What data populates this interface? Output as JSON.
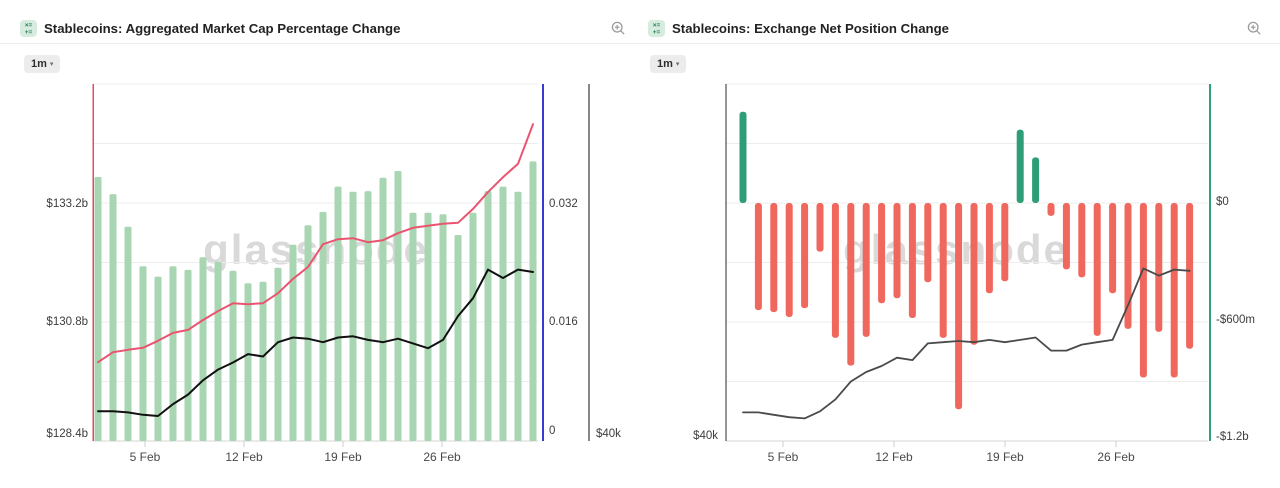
{
  "watermark": "glassnode",
  "panels": [
    {
      "title": "Stablecoins: Aggregated Market Cap Percentage Change",
      "timeframe": "1m",
      "caret": "▾",
      "icon_rows": [
        "×=",
        "+="
      ]
    },
    {
      "title": "Stablecoins: Exchange Net Position Change",
      "timeframe": "1m",
      "caret": "▾",
      "icon_rows": [
        "×=",
        "+="
      ]
    }
  ],
  "chart_data": [
    {
      "type": "bar+line",
      "title": "Stablecoins: Aggregated Market Cap Percentage Change",
      "n_points": 30,
      "grid": true,
      "legend_position": "none",
      "x_tick_labels": [
        "5 Feb",
        "12 Feb",
        "19 Feb",
        "26 Feb"
      ],
      "x_tick_indices": [
        3,
        10,
        17,
        24
      ],
      "axes": {
        "left": {
          "id": "usd_b",
          "labels": [
            "$133.2b",
            "$130.8b",
            "$128.4b"
          ],
          "range": [
            128.4,
            135.6
          ],
          "unit": "billions USD",
          "color": "#e84a61"
        },
        "right_inner": {
          "id": "pct",
          "labels": [
            "0.032",
            "0.016",
            "0"
          ],
          "range": [
            0,
            0.048
          ],
          "unit": "ratio",
          "color": "#3a3ad0"
        },
        "right_outer": {
          "id": "price",
          "labels": [
            "$40k"
          ],
          "range": [
            40,
            70
          ],
          "unit": "thousands USD",
          "color": "#111111"
        }
      },
      "series": [
        {
          "name": "market-cap-pct-change",
          "type": "bar",
          "axis": "pct",
          "color": "#a9d6b2",
          "values": [
            0.0355,
            0.0332,
            0.0288,
            0.0235,
            0.0221,
            0.0235,
            0.023,
            0.0247,
            0.0241,
            0.0229,
            0.0212,
            0.0214,
            0.0233,
            0.0264,
            0.029,
            0.0308,
            0.0342,
            0.0335,
            0.0336,
            0.0354,
            0.0363,
            0.0307,
            0.0307,
            0.0305,
            0.0277,
            0.0307,
            0.0336,
            0.0342,
            0.0335,
            0.0376
          ]
        },
        {
          "name": "aggregated-market-cap",
          "type": "line",
          "axis": "usd_b",
          "color": "#ea5470",
          "width": 2,
          "values": [
            129.99,
            130.19,
            130.24,
            130.28,
            130.42,
            130.58,
            130.64,
            130.84,
            131.02,
            131.18,
            131.16,
            131.18,
            131.38,
            131.67,
            131.91,
            132.37,
            132.47,
            132.49,
            132.41,
            132.45,
            132.59,
            132.7,
            132.74,
            132.78,
            132.8,
            133.08,
            133.42,
            133.72,
            133.99,
            134.79
          ]
        },
        {
          "name": "price",
          "type": "line",
          "axis": "price",
          "color": "#111111",
          "width": 2,
          "values": [
            42.5,
            42.5,
            42.4,
            42.2,
            42.1,
            43.1,
            43.9,
            45.1,
            46.0,
            46.6,
            47.3,
            47.1,
            48.3,
            48.7,
            48.6,
            48.3,
            48.7,
            48.8,
            48.5,
            48.3,
            48.6,
            48.2,
            47.8,
            48.5,
            50.5,
            52.0,
            54.4,
            53.7,
            54.4,
            54.2
          ]
        }
      ]
    },
    {
      "type": "bar+line",
      "title": "Stablecoins: Exchange Net Position Change",
      "n_points": 30,
      "grid": true,
      "legend_position": "none",
      "x_tick_labels": [
        "5 Feb",
        "12 Feb",
        "19 Feb",
        "26 Feb"
      ],
      "x_tick_indices": [
        3,
        10,
        17,
        24
      ],
      "axes": {
        "left": {
          "id": "price",
          "labels": [
            "$40k"
          ],
          "range": [
            40,
            70
          ],
          "unit": "thousands USD",
          "color": "#2b2b2b"
        },
        "right": {
          "id": "net",
          "labels": [
            "$0",
            "-$600m",
            "-$1.2b"
          ],
          "range": [
            -1200,
            600
          ],
          "unit": "millions USD",
          "color": "#2fa27c"
        }
      },
      "series": [
        {
          "name": "exchange-net-position-change",
          "type": "bar",
          "axis": "net",
          "colors": {
            "positive": "#2f9e77",
            "negative": "#ef675d"
          },
          "values": [
            460,
            -540,
            -550,
            -575,
            -530,
            -245,
            -680,
            -820,
            -675,
            -505,
            -480,
            -580,
            -400,
            -680,
            -1040,
            -715,
            -455,
            -395,
            370,
            230,
            -65,
            -335,
            -375,
            -670,
            -455,
            -635,
            -880,
            -650,
            -880,
            -735
          ]
        },
        {
          "name": "price",
          "type": "line",
          "axis": "price",
          "color": "#4a4a4a",
          "width": 1.8,
          "values": [
            42.4,
            42.4,
            42.2,
            42.0,
            41.9,
            42.5,
            43.5,
            45.0,
            45.8,
            46.3,
            47.0,
            46.8,
            48.2,
            48.3,
            48.4,
            48.3,
            48.5,
            48.3,
            48.5,
            48.7,
            47.6,
            47.6,
            48.1,
            48.3,
            48.5,
            51.4,
            54.5,
            53.9,
            54.4,
            54.3
          ]
        }
      ]
    }
  ]
}
